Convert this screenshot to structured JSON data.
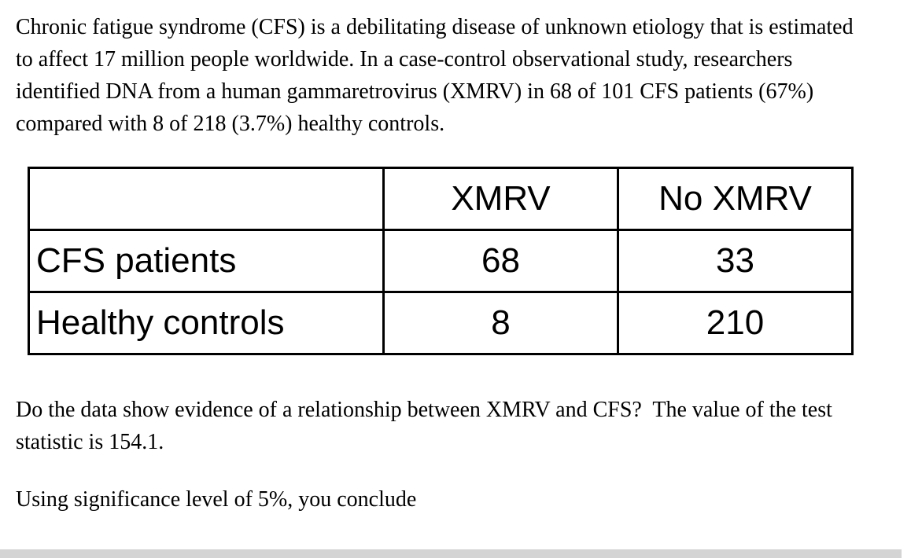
{
  "document": {
    "intro": "Chronic fatigue syndrome (CFS) is a debilitating disease of unknown etiology that is estimated to affect 17 million people worldwide. In a case-control observational study, researchers identified DNA from a human gammaretrovirus (XMRV) in 68 of 101 CFS patients (67%) compared with 8 of 218 (3.7%) healthy controls.",
    "question": "Do the data show evidence of a relationship between XMRV and CFS?  The value of the test statistic is 154.1.",
    "prompt": "Using significance level of 5%, you conclude"
  },
  "table": {
    "header": {
      "col0": "",
      "col1": "XMRV",
      "col2": "No XMRV"
    },
    "rows": [
      {
        "label": "CFS patients",
        "values": [
          "68",
          "33"
        ]
      },
      {
        "label": "Healthy controls",
        "values": [
          "8",
          "210"
        ]
      }
    ]
  }
}
